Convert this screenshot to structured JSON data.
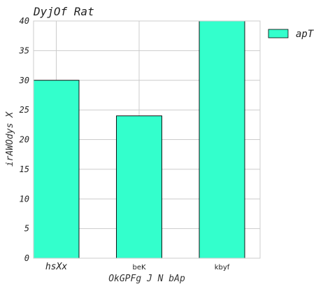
{
  "chart_data": {
    "type": "bar",
    "title": "DyjOf Rat",
    "xlabel": "OkGPFg J N bAp",
    "ylabel": "irAWOdys X",
    "categories": [
      "hsXx",
      "beK",
      "kbyf"
    ],
    "series": [
      {
        "name": "apT",
        "values": [
          30,
          24,
          40
        ],
        "color": "#33ffcc"
      }
    ],
    "ylim": [
      0,
      40
    ],
    "yticks": [
      0,
      5,
      10,
      15,
      20,
      25,
      30,
      35,
      40
    ],
    "grid": true,
    "legend_position": "outside-top-right"
  },
  "colors": {
    "bar_fill": "#33ffcc",
    "bar_edge": "#000000",
    "grid": "#cccccc",
    "axes_edge": "#cccccc"
  }
}
